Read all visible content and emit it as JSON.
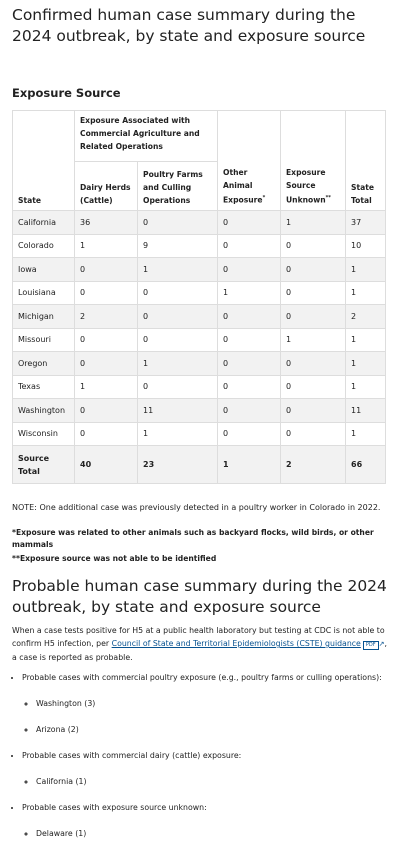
{
  "confirmed": {
    "title": "Confirmed human case summary during the 2024 outbreak, by state and exposure source",
    "section": "Exposure Source",
    "table": {
      "group_header": "Exposure Associated with Commercial Agriculture and Related Operations",
      "headers": [
        "State",
        "Dairy Herds (Cattle)",
        "Poultry Farms and Culling Operations",
        "Other Animal Exposure",
        "Exposure Source Unknown",
        "State Total"
      ],
      "header_marks": [
        "*",
        "**"
      ],
      "rows": [
        [
          "California",
          36,
          0,
          0,
          1,
          37
        ],
        [
          "Colorado",
          1,
          9,
          0,
          0,
          10
        ],
        [
          "Iowa",
          0,
          1,
          0,
          0,
          1
        ],
        [
          "Louisiana",
          0,
          0,
          1,
          0,
          1
        ],
        [
          "Michigan",
          2,
          0,
          0,
          0,
          2
        ],
        [
          "Missouri",
          0,
          0,
          0,
          1,
          1
        ],
        [
          "Oregon",
          0,
          1,
          0,
          0,
          1
        ],
        [
          "Texas",
          1,
          0,
          0,
          0,
          1
        ],
        [
          "Washington",
          0,
          11,
          0,
          0,
          11
        ],
        [
          "Wisconsin",
          0,
          1,
          0,
          0,
          1
        ],
        [
          "Source Total",
          40,
          23,
          1,
          2,
          66
        ]
      ]
    },
    "note": "NOTE: One additional case was previously detected in a poultry worker in Colorado in 2022.",
    "footnotes": [
      "*Exposure was related to other animals such as backyard flocks, wild birds, or other mammals",
      "**Exposure source was not able to be identified"
    ]
  },
  "probable": {
    "title": "Probable human case summary during the 2024 outbreak, by state and exposure source",
    "intro": "When a case tests positive for H5 at a public health laboratory but testing at CDC is not able to confirm H5 infection, per ",
    "link": "Council of State and Territorial Epidemiologists (CSTE) guidance",
    "badge": "PDF",
    "intro_end": ", a case is reported as probable.",
    "list": [
      {
        "text": "Probable cases with commercial poultry exposure (e.g., poultry farms or culling operations):",
        "items": [
          "Washington (3)",
          "Arizona (2)"
        ]
      },
      {
        "text": "Probable cases with commercial dairy (cattle) exposure:",
        "items": [
          "California (1)"
        ]
      },
      {
        "text": "Probable cases with exposure source unknown:",
        "items": [
          "Delaware (1)"
        ]
      }
    ]
  }
}
